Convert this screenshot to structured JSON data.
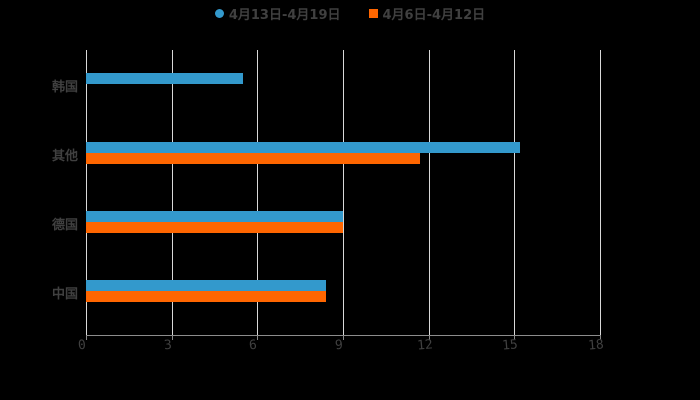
{
  "chart_data": {
    "type": "bar",
    "orientation": "horizontal",
    "title": "",
    "categories": [
      "韩国",
      "其他",
      "德国",
      "中国"
    ],
    "series": [
      {
        "name": "4月13日-4月19日",
        "color": "#3399cc",
        "values": [
          5.5,
          15.2,
          9.0,
          8.4
        ]
      },
      {
        "name": "4月6日-4月12日",
        "color": "#ff6600",
        "values": [
          null,
          11.7,
          9.0,
          8.4
        ]
      }
    ],
    "xlabel": "",
    "ylabel": "",
    "xlim": [
      0,
      18
    ],
    "xticks": [
      "0",
      "3",
      "6",
      "9",
      "12",
      "15",
      "18"
    ],
    "grid": true,
    "legend_position": "top"
  },
  "legend": {
    "s1": "4月13日-4月19日",
    "s2": "4月6日-4月12日"
  }
}
